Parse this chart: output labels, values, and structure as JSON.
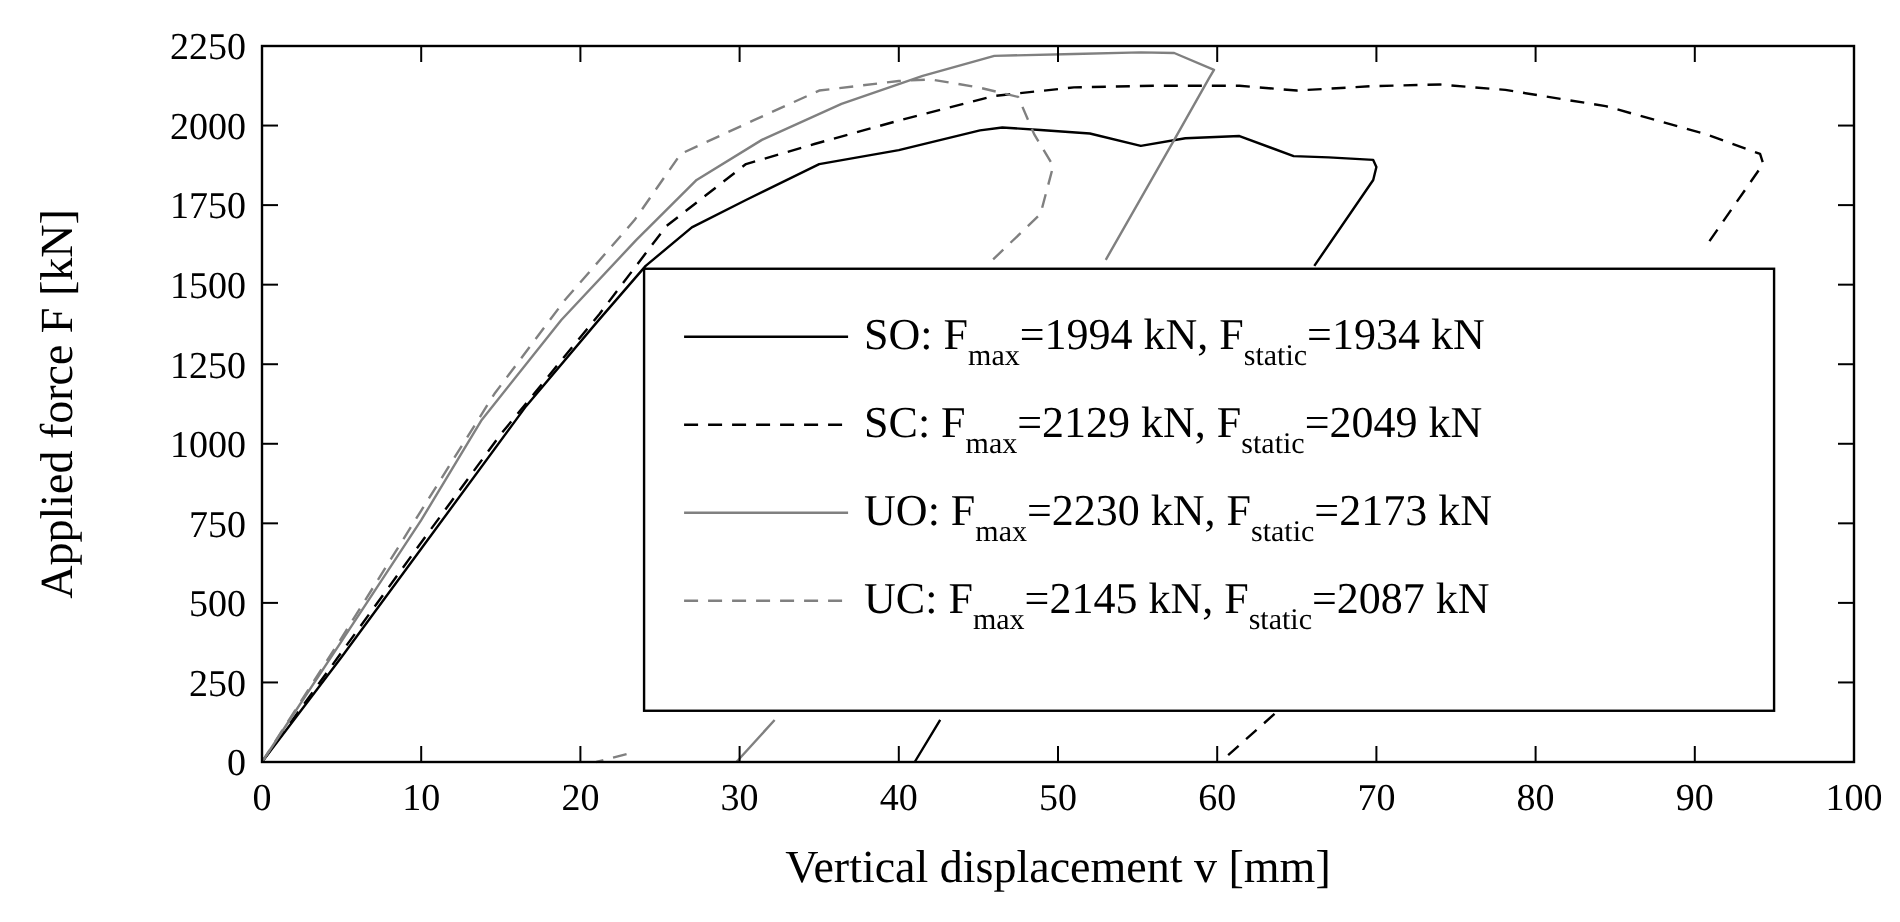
{
  "chart_data": {
    "type": "line",
    "xlabel": "Vertical displacement v [mm]",
    "ylabel": "Applied force F [kN]",
    "xlim": [
      0,
      100
    ],
    "ylim": [
      0,
      2250
    ],
    "xticks": [
      0,
      10,
      20,
      30,
      40,
      50,
      60,
      70,
      80,
      90,
      100
    ],
    "yticks": [
      0,
      250,
      500,
      750,
      1000,
      1250,
      1500,
      1750,
      2000,
      2250
    ],
    "grid": false,
    "legend": "right",
    "marker": "none",
    "series": [
      {
        "name": "SO: F$_{max}$=1994 kN, F$_{static}$=1934 kN",
        "color": "#000000",
        "line_style": "solid",
        "x": [
          0,
          5,
          10,
          16.6,
          21,
          24.1,
          27,
          30.4,
          35,
          40,
          45.1,
          46.5,
          48.9,
          52,
          55.2,
          58,
          61.4,
          64.8,
          67,
          69.8,
          70,
          69.8,
          66.1,
          60,
          55,
          50,
          45,
          42.6,
          41
        ],
        "values": [
          0,
          330,
          670,
          1119,
          1380,
          1559,
          1680,
          1766,
          1879,
          1923,
          1985,
          1994,
          1986,
          1975,
          1936,
          1960,
          1967,
          1904,
          1900,
          1892,
          1870,
          1829,
          1559,
          null,
          null,
          null,
          null,
          132,
          0
        ]
      },
      {
        "name": "SC: F$_{max}$=2129 kN, F$_{static}$=2049 kN",
        "color": "#000000",
        "line_style": "dashed",
        "x": [
          0,
          5,
          10,
          15,
          21.2,
          25.4,
          30.4,
          34.7,
          40.1,
          46,
          51,
          56,
          61.4,
          65,
          69.8,
          74,
          78.1,
          84.4,
          90.7,
          94.1,
          94.3,
          90.7,
          85,
          80,
          75,
          70,
          65,
          63.6,
          60.2
        ],
        "values": [
          0,
          345,
          690,
          1030,
          1408,
          1684,
          1879,
          1942,
          2017,
          2093,
          2120,
          2125,
          2125,
          2110,
          2124,
          2129,
          2112,
          2061,
          1973,
          1911,
          1880,
          1621,
          null,
          null,
          null,
          null,
          null,
          151,
          0
        ]
      },
      {
        "name": "UO: F$_{max}$=2230 kN, F$_{static}$=2173 kN",
        "color": "#808080",
        "line_style": "solid",
        "x": [
          0,
          5,
          10,
          13.8,
          18.8,
          23.5,
          27.3,
          31.4,
          36.4,
          41.5,
          46,
          51,
          55.2,
          57.3,
          59.8,
          59.5,
          57.3,
          53,
          48,
          43,
          38,
          32.2,
          29.8
        ],
        "values": [
          0,
          380,
          760,
          1075,
          1389,
          1640,
          1829,
          1955,
          2068,
          2156,
          2219,
          2225,
          2230,
          2228,
          2175,
          2150,
          1955,
          1578,
          null,
          null,
          null,
          132,
          0
        ]
      },
      {
        "name": "UC: F$_{max}$=2145 kN, F$_{static}$=2087 kN",
        "color": "#808080",
        "line_style": "dashed",
        "x": [
          0,
          5,
          10,
          14.6,
          19,
          23.4,
          26.3,
          30.9,
          35,
          40,
          42,
          45,
          47.5,
          48.5,
          49.7,
          48.9,
          45.5,
          40,
          35,
          30,
          25,
          22.9,
          21
        ],
        "values": [
          0,
          390,
          790,
          1157,
          1450,
          1703,
          1911,
          2017,
          2110,
          2140,
          2145,
          2120,
          2090,
          1973,
          1873,
          1722,
          1559,
          null,
          null,
          null,
          null,
          25,
          0
        ]
      }
    ]
  }
}
